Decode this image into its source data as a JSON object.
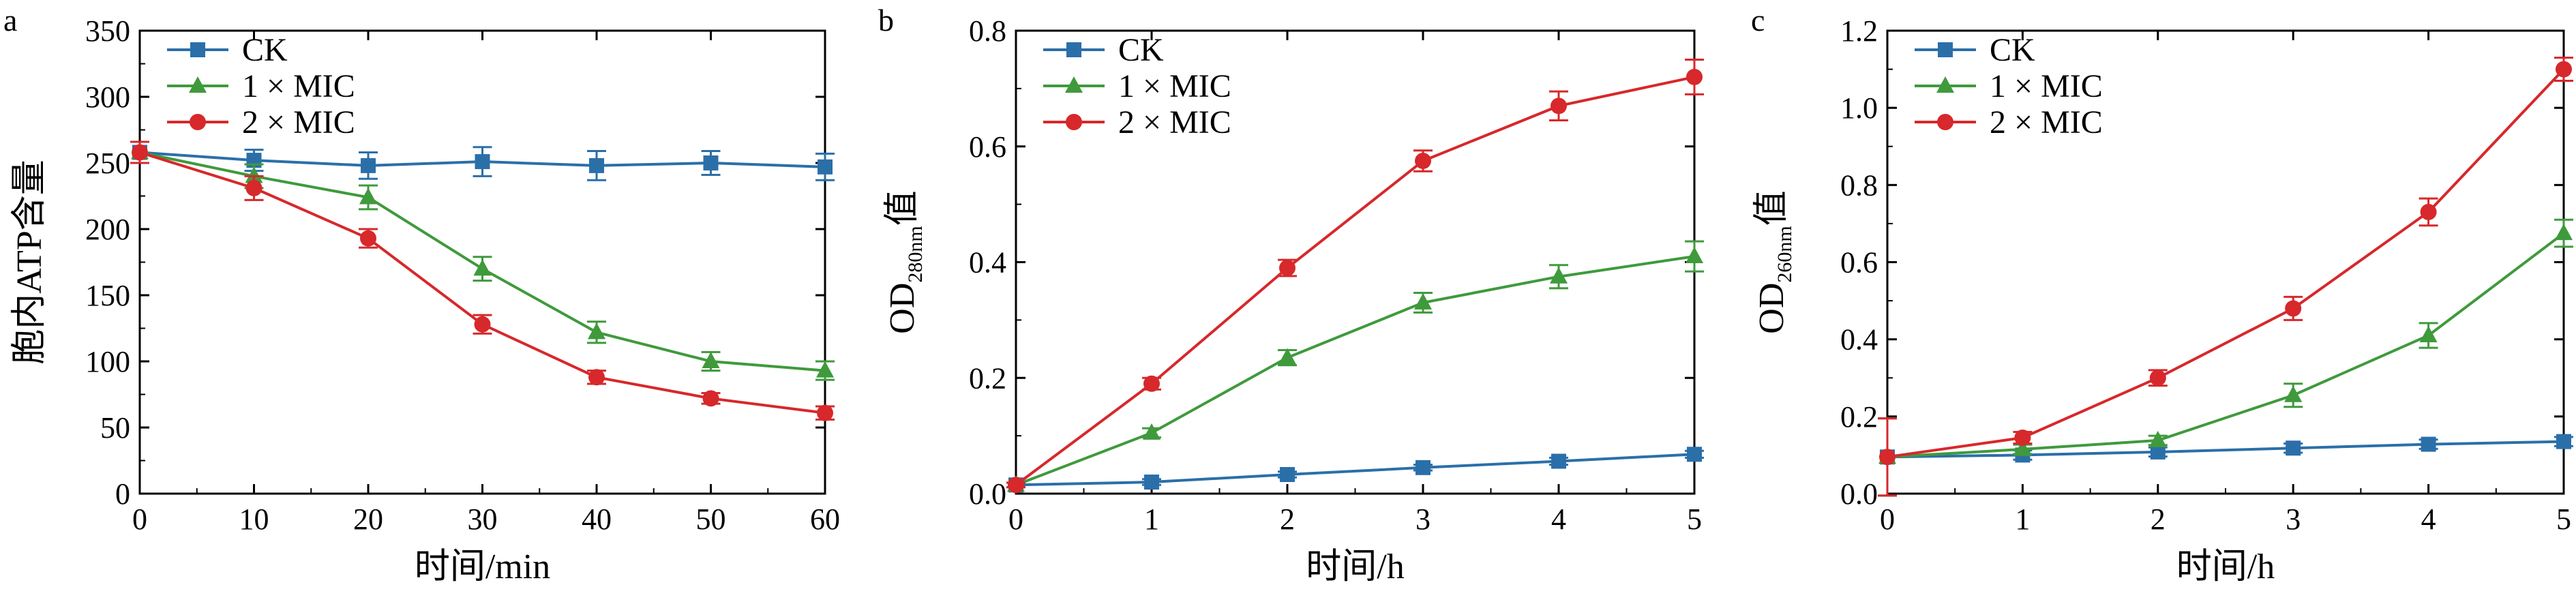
{
  "chart_data": [
    {
      "panel": "a",
      "type": "line",
      "xlabel": "时间/min",
      "ylabel": "胞内ATP含量",
      "x": [
        0,
        10,
        20,
        30,
        40,
        50,
        60
      ],
      "xlim": [
        0,
        60
      ],
      "xticks": [
        "0",
        "10",
        "20",
        "30",
        "40",
        "50",
        "60"
      ],
      "ylim": [
        0,
        350
      ],
      "yticks": [
        "0",
        "50",
        "100",
        "150",
        "200",
        "250",
        "300",
        "350"
      ],
      "legend_position": "top-left",
      "grid": false,
      "series": [
        {
          "name": "CK",
          "marker": "square",
          "color": "#2b6fa9",
          "values": [
            258,
            252,
            248,
            251,
            248,
            250,
            247
          ],
          "errors": [
            8,
            8,
            10,
            11,
            11,
            9,
            10
          ]
        },
        {
          "name": "1 × MIC",
          "marker": "triangle",
          "color": "#3f9a3c",
          "values": [
            258,
            240,
            224,
            170,
            122,
            100,
            93
          ],
          "errors": [
            8,
            9,
            9,
            9,
            8,
            7,
            7
          ]
        },
        {
          "name": "2 × MIC",
          "marker": "circle",
          "color": "#d7282b",
          "values": [
            258,
            231,
            193,
            128,
            88,
            72,
            61
          ],
          "errors": [
            8,
            9,
            7,
            7,
            5,
            4,
            5
          ]
        }
      ]
    },
    {
      "panel": "b",
      "type": "line",
      "xlabel": "时间/h",
      "ylabel_main": "OD",
      "ylabel_sub": "280nm",
      "ylabel_suffix": "值",
      "x": [
        0,
        1,
        2,
        3,
        4,
        5
      ],
      "xlim": [
        0,
        5
      ],
      "xticks": [
        "0",
        "1",
        "2",
        "3",
        "4",
        "5"
      ],
      "ylim": [
        0,
        0.8
      ],
      "yticks": [
        "0.0",
        "0.2",
        "0.4",
        "0.6",
        "0.8"
      ],
      "legend_position": "top-left",
      "grid": false,
      "series": [
        {
          "name": "CK",
          "marker": "square",
          "color": "#2b6fa9",
          "values": [
            0.015,
            0.02,
            0.033,
            0.045,
            0.056,
            0.068
          ],
          "errors": [
            0.004,
            0.005,
            0.005,
            0.005,
            0.006,
            0.006
          ]
        },
        {
          "name": "1 × MIC",
          "marker": "triangle",
          "color": "#3f9a3c",
          "values": [
            0.015,
            0.105,
            0.235,
            0.33,
            0.375,
            0.41
          ],
          "errors": [
            0.004,
            0.008,
            0.013,
            0.017,
            0.02,
            0.026
          ]
        },
        {
          "name": "2 × MIC",
          "marker": "circle",
          "color": "#d7282b",
          "values": [
            0.015,
            0.19,
            0.39,
            0.575,
            0.67,
            0.72
          ],
          "errors": [
            0.004,
            0.01,
            0.014,
            0.018,
            0.025,
            0.03
          ]
        }
      ]
    },
    {
      "panel": "c",
      "type": "line",
      "xlabel": "时间/h",
      "ylabel_main": "OD",
      "ylabel_sub": "260nm",
      "ylabel_suffix": "值",
      "x": [
        0,
        1,
        2,
        3,
        4,
        5
      ],
      "xlim": [
        0,
        5
      ],
      "xticks": [
        "0",
        "1",
        "2",
        "3",
        "4",
        "5"
      ],
      "ylim": [
        0,
        1.2
      ],
      "yticks": [
        "0.0",
        "0.2",
        "0.4",
        "0.6",
        "0.8",
        "1.0",
        "1.2"
      ],
      "legend_position": "top-left",
      "grid": false,
      "series": [
        {
          "name": "CK",
          "marker": "square",
          "color": "#2b6fa9",
          "values": [
            0.095,
            0.1,
            0.108,
            0.118,
            0.128,
            0.135
          ],
          "errors": [
            0.1,
            0.012,
            0.012,
            0.012,
            0.012,
            0.012
          ]
        },
        {
          "name": "1 × MIC",
          "marker": "triangle",
          "color": "#3f9a3c",
          "values": [
            0.095,
            0.115,
            0.138,
            0.255,
            0.41,
            0.675
          ],
          "errors": [
            0.1,
            0.012,
            0.012,
            0.03,
            0.032,
            0.035
          ]
        },
        {
          "name": "2 × MIC",
          "marker": "circle",
          "color": "#d7282b",
          "values": [
            0.095,
            0.145,
            0.3,
            0.48,
            0.73,
            1.1
          ],
          "errors": [
            0.1,
            0.015,
            0.02,
            0.03,
            0.035,
            0.03
          ]
        }
      ]
    }
  ]
}
